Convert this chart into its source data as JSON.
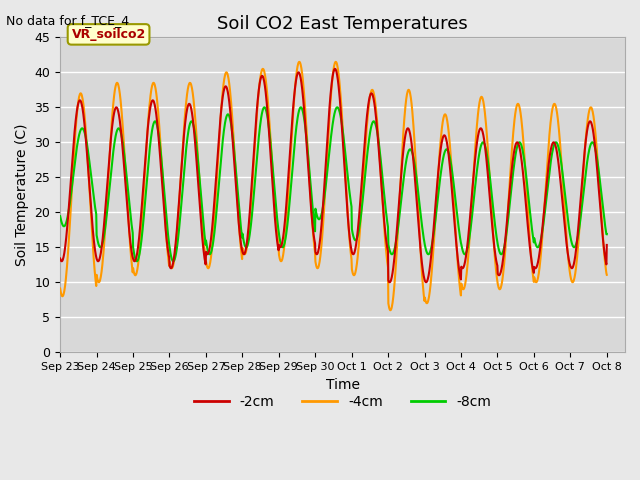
{
  "title": "Soil CO2 East Temperatures",
  "xlabel": "Time",
  "ylabel": "Soil Temperature (C)",
  "topleft_text": "No data for f_TCE_4",
  "legend_box_label": "VR_soilco2",
  "ylim": [
    0,
    45
  ],
  "x_tick_labels": [
    "Sep 23",
    "Sep 24",
    "Sep 25",
    "Sep 26",
    "Sep 27",
    "Sep 28",
    "Sep 29",
    "Sep 30",
    "Oct 1",
    "Oct 2",
    "Oct 3",
    "Oct 4",
    "Oct 5",
    "Oct 6",
    "Oct 7",
    "Oct 8"
  ],
  "line_colors": {
    "2cm": "#cc0000",
    "4cm": "#ff9900",
    "8cm": "#00cc00"
  },
  "legend_labels": [
    "-2cm",
    "-4cm",
    "-8cm"
  ],
  "background_color": "#e8e8e8",
  "plot_bg_color": "#d8d8d8",
  "grid_color": "#ffffff"
}
